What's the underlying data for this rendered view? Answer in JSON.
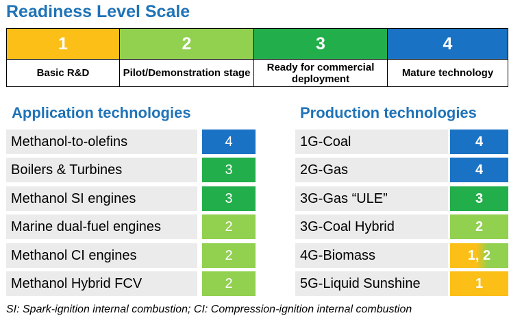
{
  "title": "Readiness Level Scale",
  "colors": {
    "level_1": "#fbbf17",
    "level_2": "#92d050",
    "level_3": "#22ae4a",
    "level_4": "#1a72c4",
    "heading": "#1f73b7",
    "row_bg": "#ebebeb",
    "gradient_1_2": "linear-gradient(90deg,#fbbf17 0%,#fbbf17 45%,#92d050 65%,#92d050 100%)"
  },
  "scale": {
    "levels": [
      {
        "number": "1",
        "label": "Basic R&D"
      },
      {
        "number": "2",
        "label": "Pilot/Demonstration stage"
      },
      {
        "number": "3",
        "label": "Ready for commercial deployment"
      },
      {
        "number": "4",
        "label": "Mature technology"
      }
    ]
  },
  "application": {
    "heading": "Application technologies",
    "rows": [
      {
        "name": "Methanol-to-olefins",
        "level": "4"
      },
      {
        "name": "Boilers & Turbines",
        "level": "3"
      },
      {
        "name": "Methanol SI engines",
        "level": "3"
      },
      {
        "name": "Marine dual-fuel engines",
        "level": "2"
      },
      {
        "name": "Methanol CI engines",
        "level": "2"
      },
      {
        "name": "Methanol Hybrid FCV",
        "level": "2"
      }
    ]
  },
  "production": {
    "heading": "Production technologies",
    "rows": [
      {
        "name": "1G-Coal",
        "level": "4"
      },
      {
        "name": "2G-Gas",
        "level": "4"
      },
      {
        "name": "3G-Gas “ULE”",
        "level": "3"
      },
      {
        "name": "3G-Coal Hybrid",
        "level": "2"
      },
      {
        "name": "4G-Biomass",
        "level": "1, 2"
      },
      {
        "name": "5G-Liquid Sunshine",
        "level": "1"
      }
    ]
  },
  "footnote": "SI: Spark-ignition internal combustion; CI: Compression-ignition internal combustion"
}
